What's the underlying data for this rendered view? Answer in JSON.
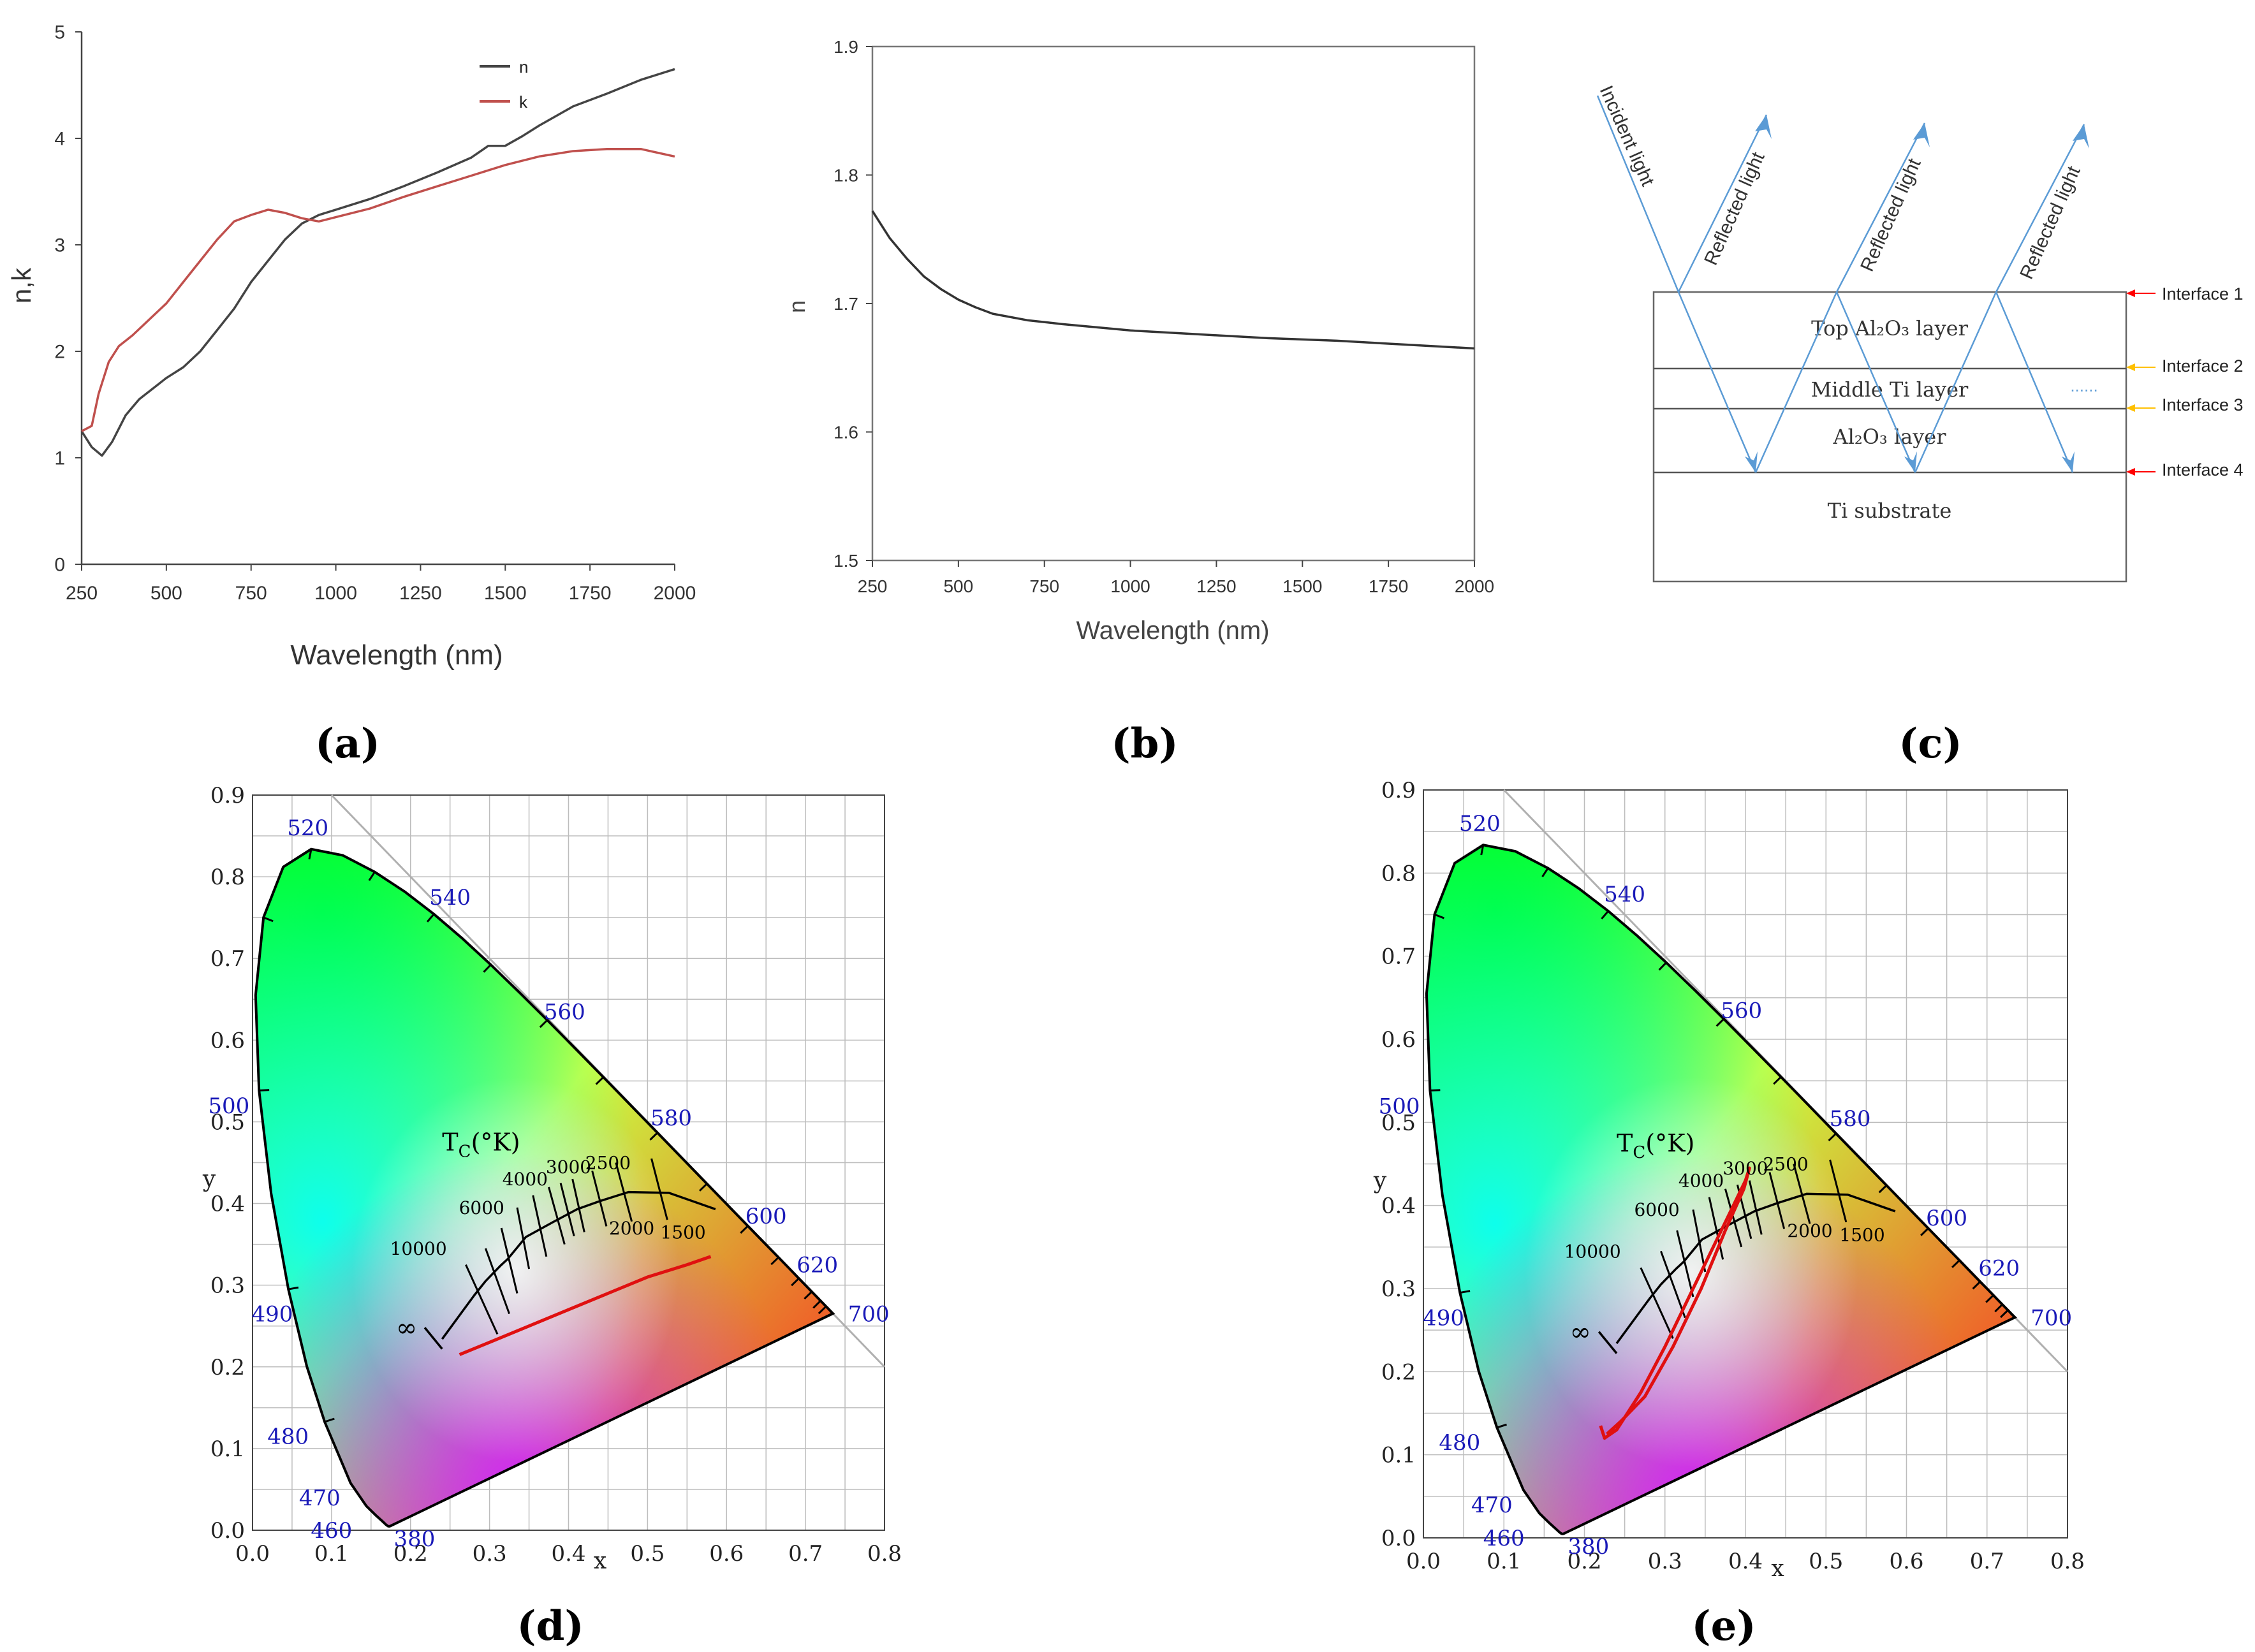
{
  "panel_labels": [
    "(a)",
    "(b)",
    "(c)",
    "(d)",
    "(e)"
  ],
  "chart_data": [
    {
      "id": "a",
      "type": "line",
      "xlabel": "Wavelength (nm)",
      "ylabel": "n,k",
      "xlim": [
        250,
        2000
      ],
      "ylim": [
        0,
        5
      ],
      "xticks": [
        250,
        500,
        750,
        1000,
        1250,
        1500,
        1750,
        2000
      ],
      "yticks": [
        0,
        1,
        2,
        3,
        4,
        5
      ],
      "legend": "top-right",
      "series": [
        {
          "name": "n",
          "color": "#444444",
          "x": [
            250,
            280,
            310,
            340,
            380,
            420,
            460,
            500,
            550,
            600,
            650,
            700,
            750,
            800,
            850,
            900,
            950,
            1000,
            1100,
            1200,
            1300,
            1400,
            1450,
            1500,
            1550,
            1600,
            1700,
            1800,
            1900,
            2000
          ],
          "y": [
            1.25,
            1.1,
            1.02,
            1.15,
            1.4,
            1.55,
            1.65,
            1.75,
            1.85,
            2.0,
            2.2,
            2.4,
            2.65,
            2.85,
            3.05,
            3.2,
            3.28,
            3.33,
            3.43,
            3.55,
            3.68,
            3.82,
            3.93,
            3.93,
            4.02,
            4.12,
            4.3,
            4.42,
            4.55,
            4.65
          ]
        },
        {
          "name": "k",
          "color": "#c0504d",
          "x": [
            250,
            280,
            300,
            330,
            360,
            400,
            450,
            500,
            550,
            600,
            650,
            700,
            750,
            800,
            850,
            900,
            950,
            1000,
            1100,
            1200,
            1300,
            1400,
            1500,
            1600,
            1700,
            1800,
            1900,
            2000
          ],
          "y": [
            1.25,
            1.3,
            1.6,
            1.9,
            2.05,
            2.15,
            2.3,
            2.45,
            2.65,
            2.85,
            3.05,
            3.22,
            3.28,
            3.33,
            3.3,
            3.25,
            3.22,
            3.26,
            3.34,
            3.45,
            3.55,
            3.65,
            3.75,
            3.83,
            3.88,
            3.9,
            3.9,
            3.83
          ]
        }
      ]
    },
    {
      "id": "b",
      "type": "line",
      "xlabel": "Wavelength (nm)",
      "ylabel": "n",
      "xlim": [
        250,
        2000
      ],
      "ylim": [
        1.5,
        1.9
      ],
      "xticks": [
        250,
        500,
        750,
        1000,
        1250,
        1500,
        1750,
        2000
      ],
      "yticks": [
        1.5,
        1.6,
        1.7,
        1.8,
        1.9
      ],
      "series": [
        {
          "name": "n",
          "color": "#333333",
          "x": [
            250,
            300,
            350,
            400,
            450,
            500,
            550,
            600,
            700,
            800,
            1000,
            1200,
            1400,
            1600,
            1800,
            2000
          ],
          "y": [
            1.772,
            1.751,
            1.735,
            1.721,
            1.711,
            1.703,
            1.697,
            1.692,
            1.687,
            1.684,
            1.679,
            1.676,
            1.673,
            1.671,
            1.668,
            1.665
          ]
        }
      ]
    },
    {
      "id": "d",
      "type": "scatter",
      "xlabel": "x",
      "ylabel": "y",
      "xlim": [
        0.0,
        0.8
      ],
      "ylim": [
        0.0,
        0.9
      ],
      "xticks": [
        0.0,
        0.1,
        0.2,
        0.3,
        0.4,
        0.5,
        0.6,
        0.7,
        0.8
      ],
      "yticks": [
        0.0,
        0.1,
        0.2,
        0.3,
        0.4,
        0.5,
        0.6,
        0.7,
        0.8,
        0.9
      ],
      "wavelength_labels": [
        "520",
        "540",
        "560",
        "580",
        "600",
        "620",
        "700",
        "500",
        "490",
        "480",
        "470",
        "460",
        "380"
      ],
      "cct_title": "T",
      "cct_sub": "C",
      "cct_unit": "(°K)",
      "cct_labels": [
        "10000",
        "6000",
        "4000",
        "3000",
        "2500",
        "2000",
        "1500",
        "∞"
      ],
      "color_trajectory": {
        "x": [
          0.262,
          0.3,
          0.35,
          0.4,
          0.45,
          0.5,
          0.55,
          0.58
        ],
        "y": [
          0.215,
          0.23,
          0.25,
          0.27,
          0.29,
          0.31,
          0.325,
          0.335
        ]
      }
    },
    {
      "id": "e",
      "type": "scatter",
      "xlabel": "x",
      "ylabel": "y",
      "xlim": [
        0.0,
        0.8
      ],
      "ylim": [
        0.0,
        0.9
      ],
      "xticks": [
        0.0,
        0.1,
        0.2,
        0.3,
        0.4,
        0.5,
        0.6,
        0.7,
        0.8
      ],
      "yticks": [
        0.0,
        0.1,
        0.2,
        0.3,
        0.4,
        0.5,
        0.6,
        0.7,
        0.8,
        0.9
      ],
      "wavelength_labels": [
        "520",
        "540",
        "560",
        "580",
        "600",
        "620",
        "700",
        "500",
        "490",
        "480",
        "470",
        "460",
        "380"
      ],
      "cct_title": "T",
      "cct_sub": "C",
      "cct_unit": "(°K)",
      "cct_labels": [
        "10000",
        "6000",
        "4000",
        "3000",
        "2500",
        "2000",
        "1500",
        "∞"
      ],
      "color_trajectory": {
        "x": [
          0.22,
          0.225,
          0.24,
          0.27,
          0.3,
          0.33,
          0.36,
          0.385,
          0.4,
          0.405,
          0.398,
          0.375,
          0.345,
          0.31,
          0.275,
          0.245,
          0.228
        ],
        "y": [
          0.135,
          0.12,
          0.13,
          0.175,
          0.23,
          0.29,
          0.35,
          0.4,
          0.43,
          0.445,
          0.42,
          0.37,
          0.3,
          0.23,
          0.17,
          0.14,
          0.125
        ]
      }
    }
  ],
  "diagram_c": {
    "incident_label": "Incident light",
    "reflected_labels": [
      "Reflected light",
      "Reflected light",
      "Reflected light"
    ],
    "layers": [
      "Top Al₂O₃ layer",
      "Middle Ti layer",
      "Al₂O₃ layer",
      "Ti substrate"
    ],
    "interfaces": [
      "Interface 1",
      "Interface 2",
      "Interface 3",
      "Interface 4"
    ],
    "dots": "......",
    "incident_color": "#5b9bd5",
    "interface_arrow_colors": [
      "#ff0000",
      "#ffc000",
      "#ffc000",
      "#ff0000"
    ]
  }
}
